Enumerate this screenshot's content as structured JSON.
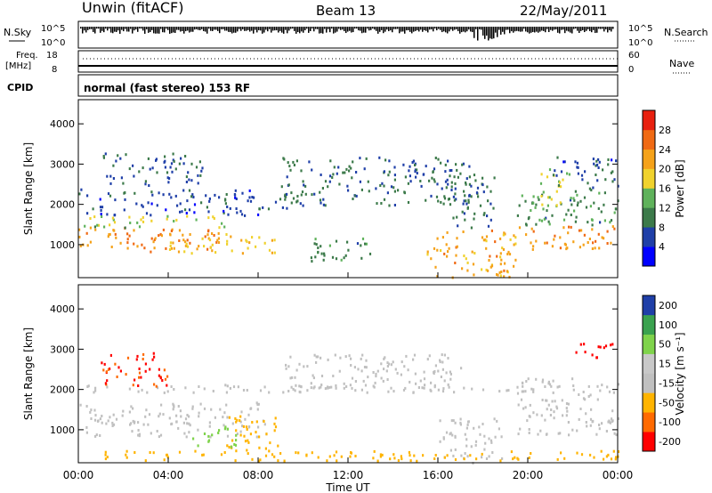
{
  "header": {
    "station": "Unwin (fitACF)",
    "beam": "Beam 13",
    "date": "22/May/2011"
  },
  "status_panel": {
    "nsky_label": "N.Sky",
    "nsearch_label": "N.Search",
    "noise_ticks": [
      "10^5",
      "10^0"
    ],
    "freq_label": "Freq.",
    "freq_unit": "[MHz]",
    "freq_ticks": [
      "18",
      "8"
    ],
    "nave_label": "Nave",
    "nave_ticks": [
      "60",
      "0"
    ],
    "cpid_label": "CPID",
    "cpid_value": "normal (fast stereo) 153 RF"
  },
  "colors": {
    "power_scale": [
      "#0000ff",
      "#1f3fa8",
      "#3c7a4a",
      "#5fb25b",
      "#f0d22d",
      "#f5a21a",
      "#f06a14",
      "#e8200f"
    ],
    "velocity_scale": [
      "#ff0000",
      "#ff6a00",
      "#ffb400",
      "#c0c0c0",
      "#c8c8c8",
      "#7fd34b",
      "#3aa24f",
      "#1f3fa8"
    ],
    "ground_scatter": "#bebebe"
  },
  "chart_data": [
    {
      "type": "heatmap",
      "panel": "power",
      "ylabel": "Slant Range [km]",
      "yticks": [
        "1000",
        "2000",
        "3000",
        "4000"
      ],
      "ylim": [
        180,
        4600
      ],
      "xlim": [
        "00:00",
        "24:00"
      ],
      "colorbar": {
        "label": "Power [dB]",
        "ticks": [
          "4",
          "8",
          "12",
          "16",
          "20",
          "24",
          "28"
        ],
        "range": [
          0,
          30
        ]
      },
      "regions": [
        {
          "t0": 0.0,
          "t1": 6.5,
          "r0": 850,
          "r1": 1450,
          "value": 22
        },
        {
          "t0": 0.0,
          "t1": 6.5,
          "r0": 1450,
          "r1": 1750,
          "value": 14
        },
        {
          "t0": 0.0,
          "t1": 8.0,
          "r0": 1750,
          "r1": 2400,
          "value": 6
        },
        {
          "t0": 1.0,
          "t1": 5.5,
          "r0": 2500,
          "r1": 3300,
          "value": 7
        },
        {
          "t0": 4.0,
          "t1": 9.0,
          "r0": 800,
          "r1": 1300,
          "value": 18
        },
        {
          "t0": 8.0,
          "t1": 10.0,
          "r0": 1900,
          "r1": 2400,
          "value": 8
        },
        {
          "t0": 9.0,
          "t1": 17.5,
          "r0": 2000,
          "r1": 3200,
          "value": 8
        },
        {
          "t0": 10.0,
          "t1": 13.0,
          "r0": 600,
          "r1": 1200,
          "value": 10
        },
        {
          "t0": 15.5,
          "t1": 19.5,
          "r0": 200,
          "r1": 1400,
          "value": 20
        },
        {
          "t0": 16.5,
          "t1": 18.5,
          "r0": 1400,
          "r1": 2800,
          "value": 8
        },
        {
          "t0": 19.5,
          "t1": 24.0,
          "r0": 900,
          "r1": 1500,
          "value": 22
        },
        {
          "t0": 19.5,
          "t1": 24.0,
          "r0": 1500,
          "r1": 2400,
          "value": 10
        },
        {
          "t0": 20.5,
          "t1": 22.0,
          "r0": 2000,
          "r1": 2900,
          "value": 16
        },
        {
          "t0": 21.0,
          "t1": 24.0,
          "r0": 2400,
          "r1": 3200,
          "value": 6
        }
      ]
    },
    {
      "type": "heatmap",
      "panel": "velocity",
      "ylabel": "Slant Range [km]",
      "yticks": [
        "1000",
        "2000",
        "3000",
        "4000"
      ],
      "ylim": [
        180,
        4600
      ],
      "xlim": [
        "00:00",
        "24:00"
      ],
      "xlabel": "Time UT",
      "xticks": [
        "00:00",
        "04:00",
        "08:00",
        "12:00",
        "16:00",
        "20:00",
        "00:00"
      ],
      "colorbar": {
        "label": "Velocity [m s⁻¹]",
        "ticks": [
          "200",
          "100",
          "50",
          "15",
          "-15",
          "-50",
          "-100",
          "-200"
        ],
        "range": [
          -250,
          250
        ]
      },
      "regions": [
        {
          "t0": 0.0,
          "t1": 8.5,
          "r0": 850,
          "r1": 1700,
          "value": 0
        },
        {
          "t0": 0.0,
          "t1": 24.0,
          "r0": 1950,
          "r1": 2150,
          "value": 0
        },
        {
          "t0": 1.0,
          "t1": 4.0,
          "r0": 2100,
          "r1": 3000,
          "value": -150
        },
        {
          "t0": 6.5,
          "t1": 9.0,
          "r0": 500,
          "r1": 1400,
          "value": -60
        },
        {
          "t0": 5.0,
          "t1": 7.0,
          "r0": 600,
          "r1": 1100,
          "value": 40
        },
        {
          "t0": 9.0,
          "t1": 17.0,
          "r0": 2000,
          "r1": 2900,
          "value": 0
        },
        {
          "t0": 16.0,
          "t1": 19.0,
          "r0": 200,
          "r1": 1300,
          "value": 0
        },
        {
          "t0": 19.5,
          "t1": 24.0,
          "r0": 900,
          "r1": 2300,
          "value": 0
        },
        {
          "t0": 22.0,
          "t1": 24.0,
          "r0": 2800,
          "r1": 3200,
          "value": -180
        },
        {
          "t0": 0.0,
          "t1": 24.0,
          "r0": 250,
          "r1": 500,
          "value": -40
        }
      ]
    }
  ]
}
